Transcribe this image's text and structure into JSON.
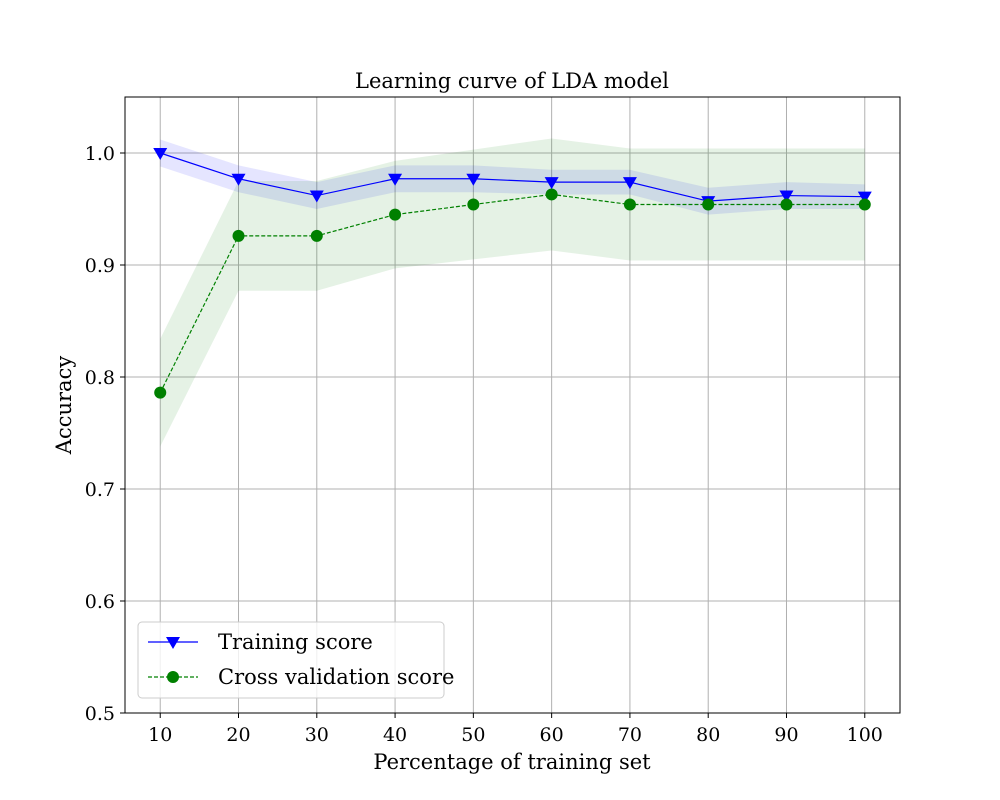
{
  "chart_data": {
    "type": "line",
    "title": "Learning curve of LDA model",
    "xlabel": "Percentage of training set",
    "ylabel": "Accuracy",
    "x": [
      10,
      20,
      30,
      40,
      50,
      60,
      70,
      80,
      90,
      100
    ],
    "xticks": [
      10,
      20,
      30,
      40,
      50,
      60,
      70,
      80,
      90,
      100
    ],
    "yticks": [
      0.5,
      0.6,
      0.7,
      0.8,
      0.9,
      1.0
    ],
    "xlim": [
      5.5,
      104.5
    ],
    "ylim": [
      0.5,
      1.05
    ],
    "grid": true,
    "legend_position": "lower-left",
    "series": [
      {
        "name": "Training score",
        "color": "#0000ff",
        "marker": "triangle-down",
        "line_style": "solid",
        "values": [
          1.0,
          0.977,
          0.962,
          0.977,
          0.977,
          0.974,
          0.974,
          0.957,
          0.962,
          0.961
        ],
        "band_lower": [
          0.988,
          0.965,
          0.95,
          0.965,
          0.965,
          0.963,
          0.963,
          0.945,
          0.95,
          0.95
        ],
        "band_upper": [
          1.012,
          0.989,
          0.974,
          0.989,
          0.989,
          0.985,
          0.985,
          0.969,
          0.974,
          0.972
        ],
        "band_color": "#0000ff"
      },
      {
        "name": "Cross validation score",
        "color": "#008000",
        "marker": "circle",
        "line_style": "dashed",
        "values": [
          0.786,
          0.926,
          0.926,
          0.945,
          0.954,
          0.963,
          0.954,
          0.954,
          0.954,
          0.954
        ],
        "band_lower": [
          0.738,
          0.877,
          0.877,
          0.897,
          0.905,
          0.913,
          0.904,
          0.904,
          0.904,
          0.904
        ],
        "band_upper": [
          0.834,
          0.975,
          0.975,
          0.993,
          1.003,
          1.013,
          1.004,
          1.004,
          1.004,
          1.004
        ],
        "band_color": "#008000"
      }
    ]
  }
}
